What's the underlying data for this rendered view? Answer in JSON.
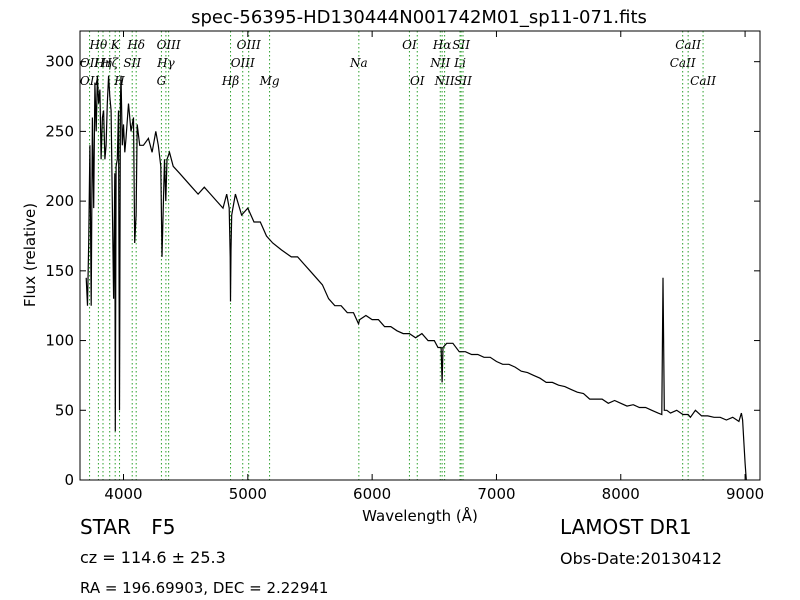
{
  "chart_data": {
    "type": "line",
    "title": "spec-56395-HD130444N001742M01_sp11-071.fits",
    "xlabel": "Wavelength (Å)",
    "ylabel": "Flux (relative)",
    "xlim": [
      3650,
      9120
    ],
    "ylim": [
      0,
      322
    ],
    "xticks": [
      4000,
      5000,
      6000,
      7000,
      8000,
      9000
    ],
    "xtick_labels": [
      "4000",
      "5000",
      "6000",
      "7000",
      "8000",
      "9000"
    ],
    "yticks": [
      0,
      50,
      100,
      150,
      200,
      250,
      300
    ],
    "ytick_labels": [
      "0",
      "50",
      "100",
      "150",
      "200",
      "250",
      "300"
    ],
    "grid": false,
    "line_color": "#000000",
    "marker_color": "#2ca02c",
    "series": [
      {
        "x": [
          3700,
          3710,
          3720,
          3730,
          3740,
          3750,
          3760,
          3770,
          3780,
          3790,
          3800,
          3810,
          3820,
          3830,
          3840,
          3850,
          3860,
          3870,
          3880,
          3890,
          3900,
          3910,
          3920,
          3930,
          3934,
          3940,
          3950,
          3960,
          3968,
          3975,
          3980,
          3990,
          4000,
          4010,
          4020,
          4040,
          4060,
          4080,
          4090,
          4101,
          4110,
          4130,
          4160,
          4200,
          4230,
          4260,
          4280,
          4300,
          4310,
          4330,
          4340,
          4350,
          4370,
          4400,
          4450,
          4500,
          4550,
          4600,
          4650,
          4700,
          4750,
          4800,
          4830,
          4850,
          4858,
          4861,
          4865,
          4870,
          4880,
          4900,
          4950,
          5000,
          5050,
          5100,
          5150,
          5200,
          5270,
          5350,
          5400,
          5450,
          5500,
          5550,
          5600,
          5650,
          5700,
          5750,
          5800,
          5850,
          5890,
          5900,
          5950,
          6000,
          6050,
          6100,
          6150,
          6200,
          6250,
          6300,
          6350,
          6400,
          6450,
          6500,
          6530,
          6555,
          6563,
          6570,
          6600,
          6650,
          6700,
          6750,
          6800,
          6850,
          6900,
          6950,
          7000,
          7050,
          7100,
          7150,
          7200,
          7250,
          7300,
          7350,
          7400,
          7450,
          7500,
          7550,
          7600,
          7650,
          7700,
          7750,
          7800,
          7850,
          7900,
          7950,
          8000,
          8050,
          8100,
          8150,
          8200,
          8250,
          8300,
          8330,
          8340,
          8350,
          8370,
          8400,
          8450,
          8500,
          8542,
          8560,
          8600,
          8650,
          8700,
          8750,
          8800,
          8850,
          8900,
          8950,
          8970,
          8980,
          8990,
          9000,
          9010
        ],
        "y": [
          145,
          125,
          170,
          240,
          125,
          260,
          195,
          285,
          250,
          290,
          270,
          280,
          230,
          260,
          265,
          230,
          240,
          270,
          290,
          275,
          265,
          200,
          130,
          220,
          35,
          225,
          230,
          265,
          50,
          270,
          290,
          240,
          255,
          235,
          245,
          270,
          250,
          260,
          170,
          190,
          255,
          240,
          240,
          245,
          235,
          250,
          240,
          225,
          160,
          230,
          200,
          230,
          235,
          225,
          220,
          215,
          210,
          205,
          210,
          205,
          200,
          195,
          205,
          195,
          160,
          128,
          165,
          190,
          195,
          205,
          190,
          195,
          185,
          185,
          175,
          170,
          165,
          160,
          160,
          155,
          150,
          145,
          140,
          130,
          125,
          125,
          120,
          120,
          112,
          115,
          118,
          115,
          115,
          110,
          110,
          107,
          105,
          105,
          102,
          105,
          100,
          100,
          95,
          95,
          70,
          95,
          98,
          98,
          92,
          92,
          90,
          90,
          88,
          88,
          85,
          83,
          83,
          81,
          78,
          77,
          75,
          73,
          70,
          70,
          68,
          67,
          65,
          63,
          62,
          58,
          58,
          58,
          55,
          57,
          55,
          53,
          54,
          52,
          52,
          50,
          48,
          47,
          145,
          50,
          50,
          48,
          50,
          47,
          47,
          45,
          50,
          46,
          46,
          45,
          45,
          43,
          45,
          42,
          48,
          43,
          28,
          12,
          0
        ]
      }
    ],
    "line_markers": [
      {
        "wavelength": 3727,
        "label": "OII",
        "row": 2
      },
      {
        "wavelength": 3727,
        "label": "OII",
        "row": 3
      },
      {
        "wavelength": 3798,
        "label": "Hθ",
        "row": 1
      },
      {
        "wavelength": 3835,
        "label": "Hη",
        "row": 2
      },
      {
        "wavelength": 3889,
        "label": "Hζ",
        "row": 2
      },
      {
        "wavelength": 3933,
        "label": "K",
        "row": 1
      },
      {
        "wavelength": 3968,
        "label": "H",
        "row": 3
      },
      {
        "wavelength": 4070,
        "label": "SII",
        "row": 2
      },
      {
        "wavelength": 4102,
        "label": "Hδ",
        "row": 1
      },
      {
        "wavelength": 4305,
        "label": "G",
        "row": 3
      },
      {
        "wavelength": 4341,
        "label": "Hγ",
        "row": 2
      },
      {
        "wavelength": 4363,
        "label": "OIII",
        "row": 1
      },
      {
        "wavelength": 4861,
        "label": "Hβ",
        "row": 3
      },
      {
        "wavelength": 4959,
        "label": "OIII",
        "row": 2
      },
      {
        "wavelength": 5007,
        "label": "OIII",
        "row": 1
      },
      {
        "wavelength": 5175,
        "label": "Mg",
        "row": 3
      },
      {
        "wavelength": 5893,
        "label": "Na",
        "row": 2
      },
      {
        "wavelength": 6300,
        "label": "OI",
        "row": 1
      },
      {
        "wavelength": 6363,
        "label": "OI",
        "row": 3
      },
      {
        "wavelength": 6548,
        "label": "NII",
        "row": 2
      },
      {
        "wavelength": 6563,
        "label": "Hα",
        "row": 1
      },
      {
        "wavelength": 6583,
        "label": "NII",
        "row": 3
      },
      {
        "wavelength": 6707,
        "label": "Li",
        "row": 2
      },
      {
        "wavelength": 6716,
        "label": "SII",
        "row": 1
      },
      {
        "wavelength": 6731,
        "label": "SII",
        "row": 3
      },
      {
        "wavelength": 8498,
        "label": "CaII",
        "row": 2
      },
      {
        "wavelength": 8542,
        "label": "CaII",
        "row": 1
      },
      {
        "wavelength": 8662,
        "label": "CaII",
        "row": 3
      }
    ]
  },
  "info": {
    "object_class": "STAR",
    "subclass": "F5",
    "survey": "LAMOST DR1",
    "redshift": "cz = 114.6 ± 25.3",
    "obs_date": "Obs-Date:20130412",
    "coordinates": "RA = 196.69903, DEC = 2.22941"
  }
}
